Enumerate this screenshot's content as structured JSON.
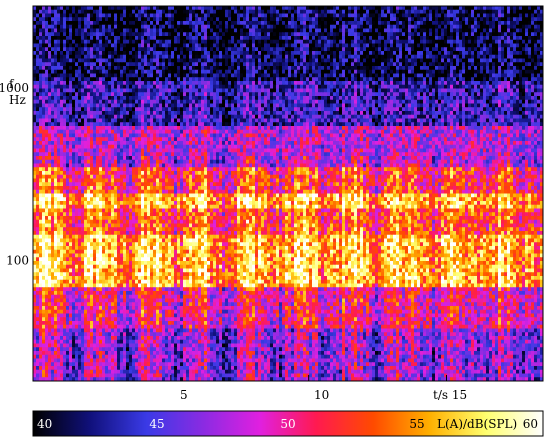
{
  "chart_data": {
    "type": "heatmap",
    "x_axis": {
      "label": "t/s",
      "ticks": [
        5,
        10,
        15
      ],
      "range": [
        0,
        18.5
      ]
    },
    "y_axis": {
      "label_top": "f",
      "label_bottom": "Hz",
      "ticks": [
        100,
        1000
      ],
      "scale": "log",
      "range": [
        20,
        3000
      ]
    },
    "colorbar": {
      "label": "L(A)/dB(SPL)",
      "ticks": [
        40,
        45,
        50,
        55,
        60
      ],
      "range": [
        40,
        60
      ],
      "colors": [
        "#000000",
        "#10107a",
        "#3a3ae6",
        "#8a2be2",
        "#e020e0",
        "#ff1a50",
        "#ff4a00",
        "#ffb000",
        "#ffff70",
        "#ffffff"
      ]
    },
    "bands": [
      {
        "f_low": 1100,
        "f_high": 3000,
        "level": 41.5
      },
      {
        "f_low": 600,
        "f_high": 1100,
        "level": 44
      },
      {
        "f_low": 350,
        "f_high": 600,
        "level": 48
      },
      {
        "f_low": 250,
        "f_high": 350,
        "level": 52
      },
      {
        "f_low": 200,
        "f_high": 250,
        "level": 56
      },
      {
        "f_low": 140,
        "f_high": 200,
        "level": 53
      },
      {
        "f_low": 70,
        "f_high": 140,
        "level": 56
      },
      {
        "f_low": 40,
        "f_high": 70,
        "level": 50
      },
      {
        "f_low": 20,
        "f_high": 40,
        "level": 47
      }
    ]
  }
}
